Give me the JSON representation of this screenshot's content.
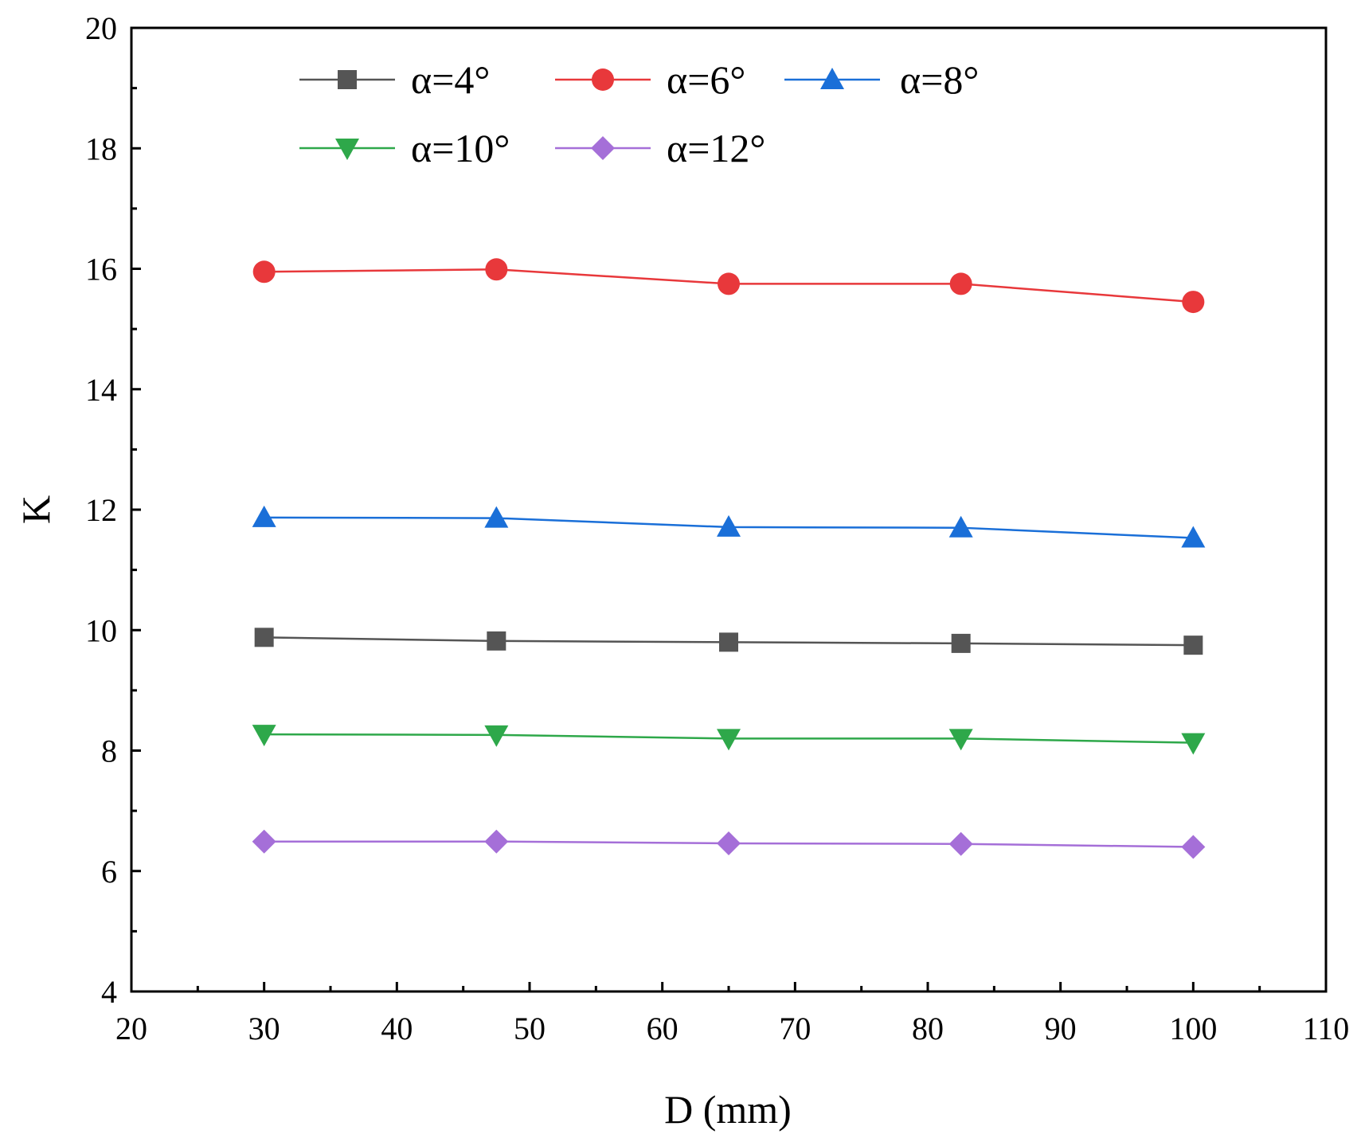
{
  "chart_data": {
    "type": "line",
    "title": "",
    "xlabel": "D (mm)",
    "ylabel": "K",
    "xlim": [
      20,
      110
    ],
    "ylim": [
      4,
      20
    ],
    "xticks": [
      20,
      30,
      40,
      50,
      60,
      70,
      80,
      90,
      100,
      110
    ],
    "yticks": [
      4,
      6,
      8,
      10,
      12,
      14,
      16,
      18,
      20
    ],
    "grid": false,
    "legend_position": "top-left",
    "x": [
      30,
      47.5,
      65,
      82.5,
      100
    ],
    "series": [
      {
        "name": "α=4°",
        "color": "#555555",
        "marker": "square",
        "values": [
          9.88,
          9.82,
          9.8,
          9.78,
          9.75
        ]
      },
      {
        "name": "α=6°",
        "color": "#e8383b",
        "marker": "circle",
        "values": [
          15.95,
          15.99,
          15.75,
          15.75,
          15.45
        ]
      },
      {
        "name": "α=8°",
        "color": "#1a6fd8",
        "marker": "triangle-up",
        "values": [
          11.87,
          11.86,
          11.71,
          11.7,
          11.53
        ]
      },
      {
        "name": "α=10°",
        "color": "#2ea84a",
        "marker": "triangle-down",
        "values": [
          8.27,
          8.26,
          8.2,
          8.2,
          8.13
        ]
      },
      {
        "name": "α=12°",
        "color": "#a56fd8",
        "marker": "diamond",
        "values": [
          6.49,
          6.49,
          6.46,
          6.45,
          6.4
        ]
      }
    ]
  }
}
